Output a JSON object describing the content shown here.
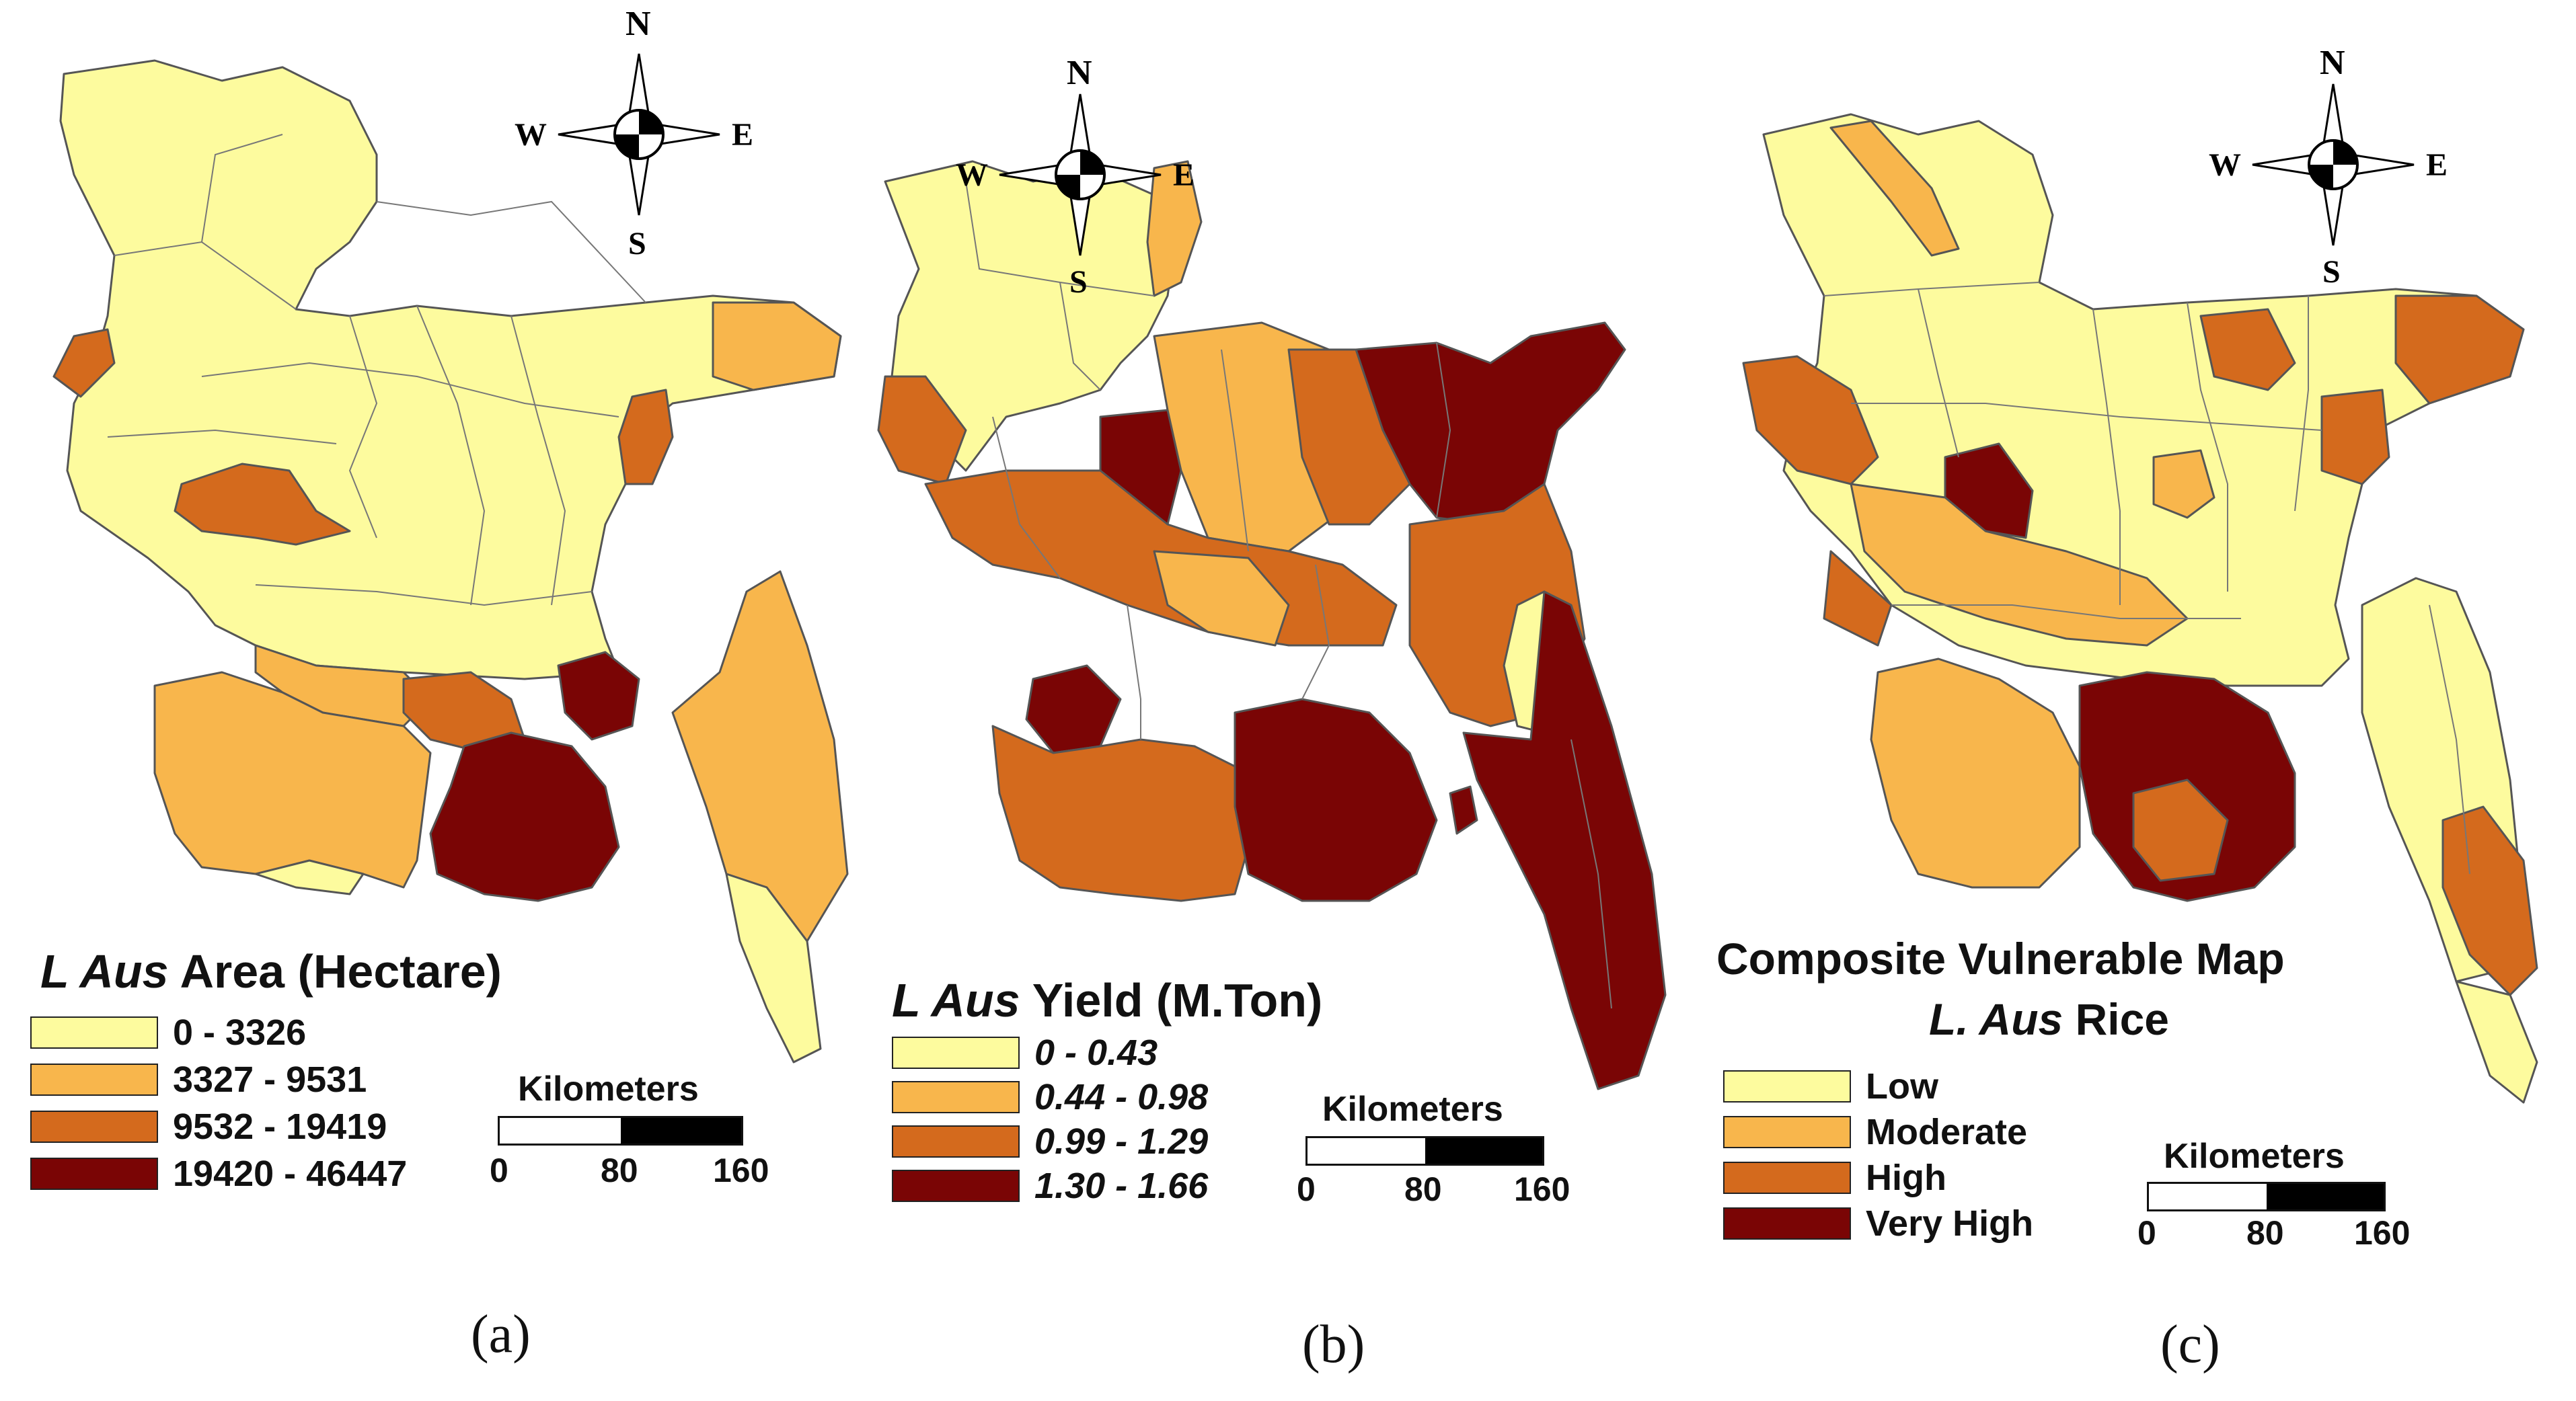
{
  "colors": {
    "class1": "#fdfb9e",
    "class2": "#f8b64c",
    "class3": "#d46a1d",
    "class4": "#7a0505"
  },
  "compass": {
    "n": "N",
    "s": "S",
    "e": "E",
    "w": "W"
  },
  "scale": {
    "title": "Kilometers",
    "t0": "0",
    "t1": "80",
    "t2": "160"
  },
  "panels": [
    {
      "caption": "(a)",
      "title_italic": "L Aus",
      "title_rest": " Area (Hectare)",
      "legend": [
        "0 - 3326",
        "3327 - 9531",
        "9532 - 19419",
        "19420 - 46447"
      ]
    },
    {
      "caption": "(b)",
      "title_italic": "L Aus",
      "title_rest": " Yield (M.Ton)",
      "legend": [
        "0 - 0.43",
        "0.44 - 0.98",
        "0.99 - 1.29",
        "1.30 - 1.66"
      ]
    },
    {
      "caption": "(c)",
      "title_line1": "Composite Vulnerable Map",
      "title_italic": "L. Aus",
      "title_rest": " Rice",
      "legend": [
        "Low",
        "Moderate",
        "High",
        "Very High"
      ]
    }
  ]
}
